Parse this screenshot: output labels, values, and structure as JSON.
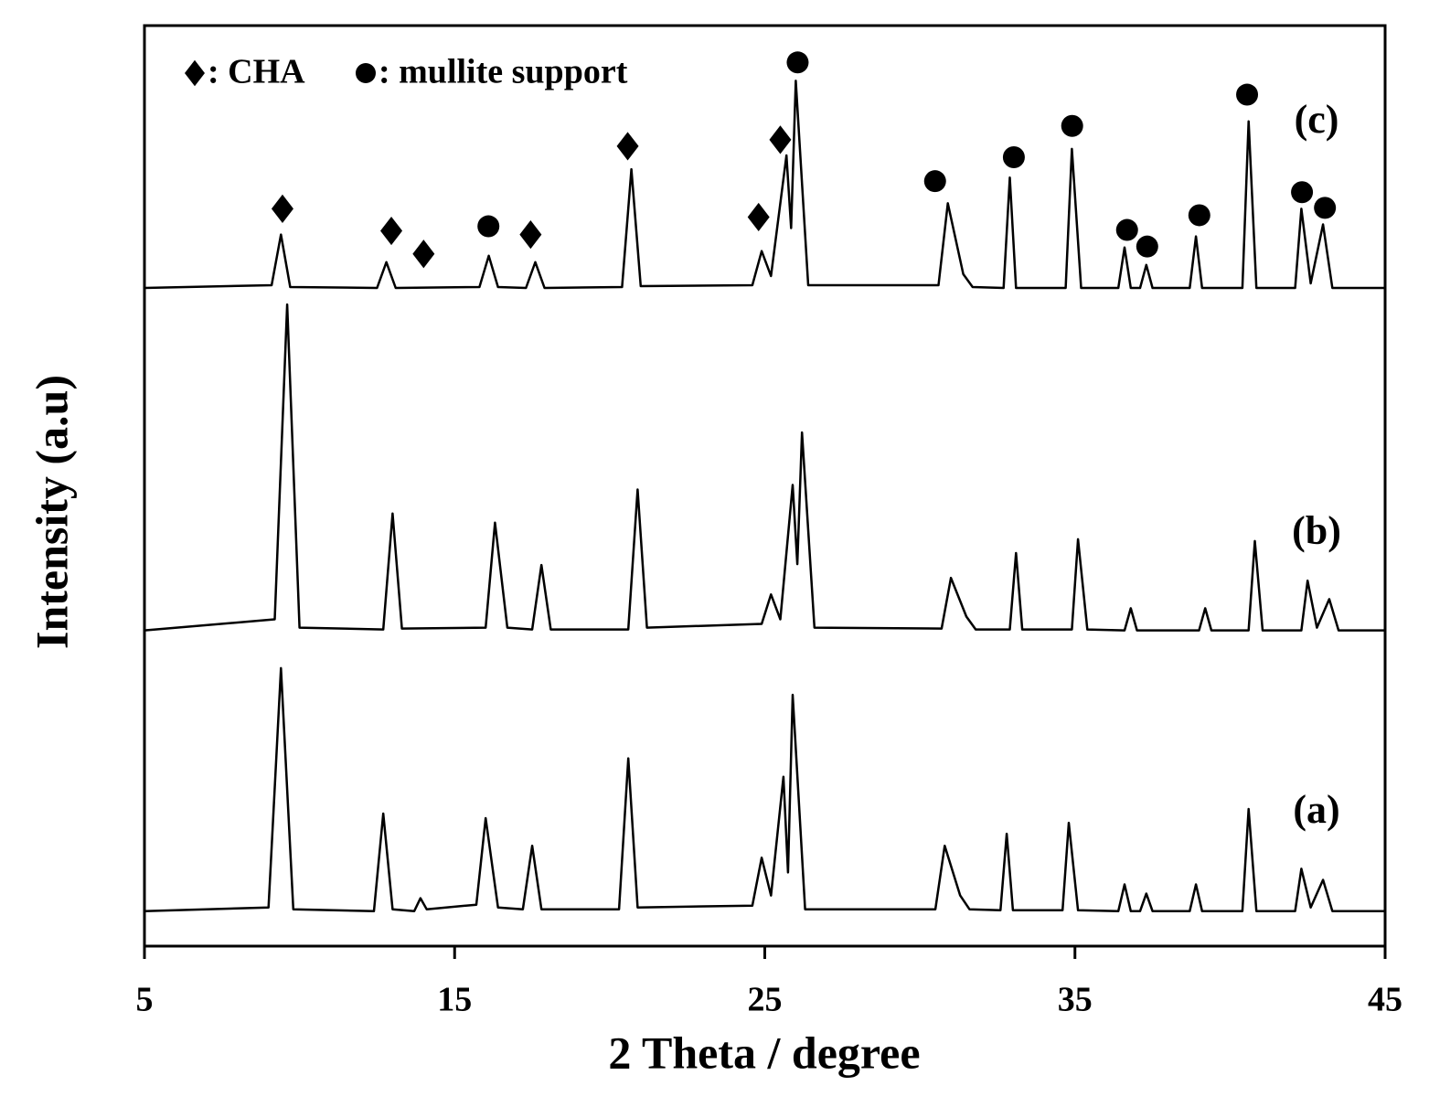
{
  "chart_data": {
    "type": "line",
    "xlabel": "2 Theta / degree",
    "ylabel": "Intensity (a.u)",
    "xlim": [
      5,
      45
    ],
    "xticks": [
      5,
      15,
      25,
      35,
      45
    ],
    "ylim": [
      0,
      100
    ],
    "legend": [
      {
        "symbol": "diamond",
        "label": ": CHA"
      },
      {
        "symbol": "circle",
        "label": ": mullite support"
      }
    ],
    "series": [
      {
        "name": "(a)",
        "color": "#000000",
        "x": [
          5,
          9.0,
          9.4,
          9.8,
          12.4,
          12.7,
          13.0,
          13.7,
          13.9,
          14.1,
          15.7,
          16.0,
          16.4,
          17.2,
          17.5,
          17.8,
          20.3,
          20.6,
          20.9,
          24.6,
          24.9,
          25.2,
          25.6,
          25.75,
          25.9,
          26.3,
          30.5,
          30.8,
          31.3,
          31.6,
          32.6,
          32.8,
          33.0,
          34.6,
          34.8,
          35.1,
          36.4,
          36.6,
          36.8,
          37.1,
          37.3,
          37.5,
          38.7,
          38.9,
          39.1,
          40.4,
          40.6,
          40.85,
          42.1,
          42.3,
          42.6,
          43.0,
          43.3,
          45
        ],
        "values": [
          3.8,
          4.2,
          30.2,
          4.0,
          3.8,
          14.4,
          4.0,
          3.8,
          5.2,
          4.0,
          4.5,
          13.9,
          4.2,
          4.0,
          10.9,
          4.0,
          4.0,
          20.4,
          4.2,
          4.4,
          9.6,
          5.5,
          18.4,
          8.0,
          27.3,
          4.0,
          4.0,
          10.9,
          5.5,
          4.0,
          3.9,
          12.2,
          3.9,
          3.9,
          13.4,
          3.9,
          3.8,
          6.7,
          3.8,
          3.8,
          5.7,
          3.8,
          3.8,
          6.7,
          3.8,
          3.8,
          14.9,
          3.8,
          3.8,
          8.4,
          4.2,
          7.2,
          3.8,
          3.8
        ]
      },
      {
        "name": "(b)",
        "color": "#000000",
        "x": [
          5,
          9.2,
          9.6,
          10.0,
          12.7,
          13.0,
          13.3,
          16.0,
          16.3,
          16.7,
          17.5,
          17.8,
          18.1,
          20.6,
          20.9,
          21.2,
          24.9,
          25.2,
          25.5,
          25.9,
          26.05,
          26.2,
          26.6,
          30.7,
          31.0,
          31.5,
          31.8,
          32.9,
          33.1,
          33.3,
          34.9,
          35.1,
          35.4,
          36.6,
          36.8,
          37.0,
          39.0,
          39.2,
          39.4,
          40.6,
          40.8,
          41.05,
          42.3,
          42.5,
          42.8,
          43.2,
          43.5,
          45
        ],
        "values": [
          34.3,
          35.5,
          69.7,
          34.6,
          34.4,
          47.0,
          34.5,
          34.6,
          46.0,
          34.6,
          34.4,
          41.4,
          34.4,
          34.4,
          49.6,
          34.6,
          35.0,
          38.2,
          35.5,
          50.1,
          41.5,
          55.8,
          34.6,
          34.5,
          40.0,
          35.8,
          34.4,
          34.4,
          42.7,
          34.4,
          34.4,
          44.2,
          34.4,
          34.3,
          36.7,
          34.3,
          34.3,
          36.7,
          34.3,
          34.3,
          44.0,
          34.3,
          34.3,
          39.7,
          34.6,
          37.7,
          34.3,
          34.3
        ]
      },
      {
        "name": "(c)",
        "color": "#000000",
        "x": [
          5,
          9.1,
          9.4,
          9.7,
          12.5,
          12.8,
          13.1,
          15.8,
          16.1,
          16.4,
          17.3,
          17.6,
          17.9,
          20.4,
          20.7,
          21.0,
          24.6,
          24.9,
          25.2,
          25.7,
          25.85,
          26.0,
          26.4,
          30.6,
          30.9,
          31.4,
          31.7,
          32.7,
          32.9,
          33.1,
          34.7,
          34.9,
          35.2,
          36.4,
          36.6,
          36.8,
          37.1,
          37.3,
          37.5,
          38.7,
          38.9,
          39.1,
          40.4,
          40.6,
          40.85,
          42.1,
          42.3,
          42.6,
          43.0,
          43.3,
          45
        ],
        "values": [
          71.5,
          71.8,
          77.3,
          71.6,
          71.5,
          74.3,
          71.5,
          71.6,
          75.0,
          71.6,
          71.5,
          74.3,
          71.5,
          71.6,
          84.4,
          71.7,
          71.8,
          75.5,
          72.8,
          85.9,
          78.0,
          94.0,
          71.8,
          71.8,
          80.7,
          73.0,
          71.6,
          71.5,
          83.5,
          71.5,
          71.5,
          86.6,
          71.5,
          71.5,
          75.9,
          71.5,
          71.5,
          74.0,
          71.5,
          71.5,
          77.1,
          71.5,
          71.5,
          89.6,
          71.5,
          71.5,
          80.1,
          72.0,
          78.4,
          71.5,
          71.5
        ]
      }
    ],
    "phase_markers": [
      {
        "symbol": "diamond",
        "x": 9.45,
        "y": 80.1
      },
      {
        "symbol": "diamond",
        "x": 12.96,
        "y": 77.7
      },
      {
        "symbol": "diamond",
        "x": 14.0,
        "y": 75.2
      },
      {
        "symbol": "diamond",
        "x": 17.45,
        "y": 77.3
      },
      {
        "symbol": "diamond",
        "x": 20.58,
        "y": 86.9
      },
      {
        "symbol": "diamond",
        "x": 24.8,
        "y": 79.2
      },
      {
        "symbol": "diamond",
        "x": 25.5,
        "y": 87.6
      },
      {
        "symbol": "circle",
        "x": 16.09,
        "y": 78.2
      },
      {
        "symbol": "circle",
        "x": 26.06,
        "y": 96.0
      },
      {
        "symbol": "circle",
        "x": 30.49,
        "y": 83.1
      },
      {
        "symbol": "circle",
        "x": 33.03,
        "y": 85.7
      },
      {
        "symbol": "circle",
        "x": 34.91,
        "y": 89.1
      },
      {
        "symbol": "circle",
        "x": 36.68,
        "y": 77.8
      },
      {
        "symbol": "circle",
        "x": 37.33,
        "y": 76.0
      },
      {
        "symbol": "circle",
        "x": 39.01,
        "y": 79.4
      },
      {
        "symbol": "circle",
        "x": 40.55,
        "y": 92.5
      },
      {
        "symbol": "circle",
        "x": 42.32,
        "y": 81.9
      },
      {
        "symbol": "circle",
        "x": 43.06,
        "y": 80.2
      }
    ]
  }
}
